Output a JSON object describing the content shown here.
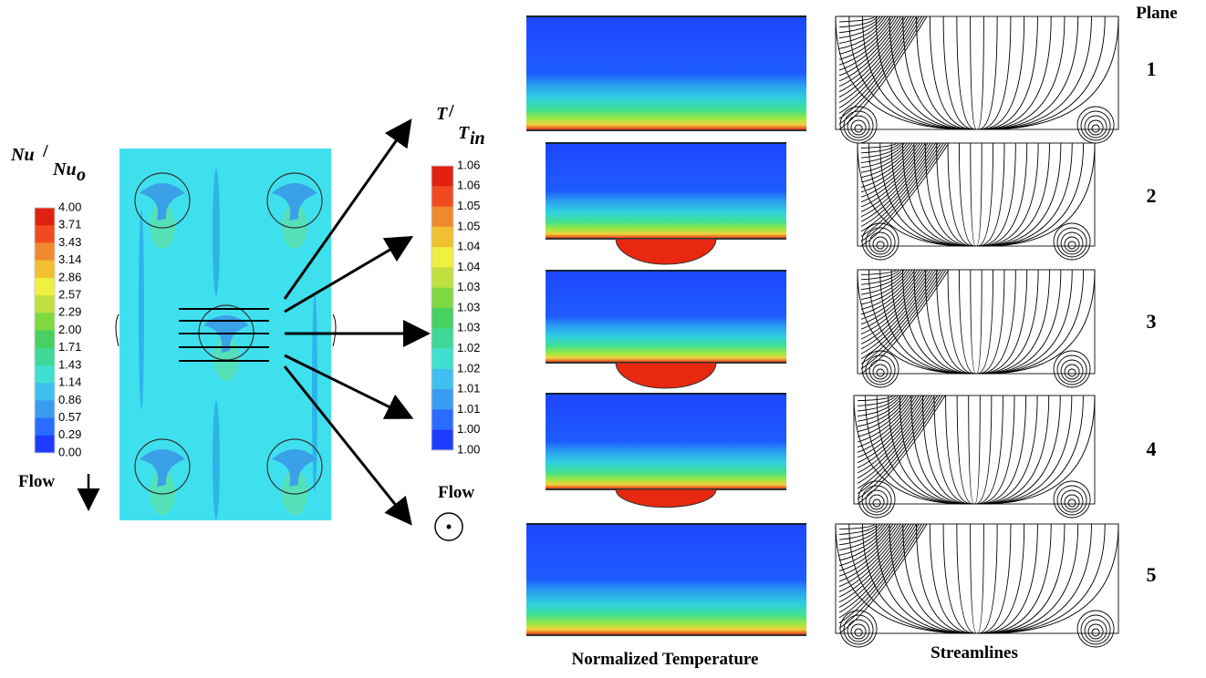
{
  "nu_colorbar": {
    "title": {
      "numerator": "Nu",
      "denominator": "Nu",
      "subscript": "o"
    },
    "labels": [
      "4.00",
      "3.71",
      "3.43",
      "3.14",
      "2.86",
      "2.57",
      "2.29",
      "2.00",
      "1.71",
      "1.43",
      "1.14",
      "0.86",
      "0.57",
      "0.29",
      "0.00"
    ]
  },
  "flow_left": "Flow",
  "temp_colorbar": {
    "title": {
      "numerator": "T",
      "denominator": "T",
      "subscript": "in"
    },
    "labels": [
      "1.06",
      "1.06",
      "1.05",
      "1.05",
      "1.04",
      "1.04",
      "1.03",
      "1.03",
      "1.03",
      "1.02",
      "1.02",
      "1.01",
      "1.01",
      "1.00",
      "1.00"
    ]
  },
  "flow_right": "Flow",
  "plane_header": "Plane",
  "planes": [
    "1",
    "2",
    "3",
    "4",
    "5"
  ],
  "captions": {
    "temperature": "Normalized Temperature",
    "streamlines": "Streamlines"
  }
}
